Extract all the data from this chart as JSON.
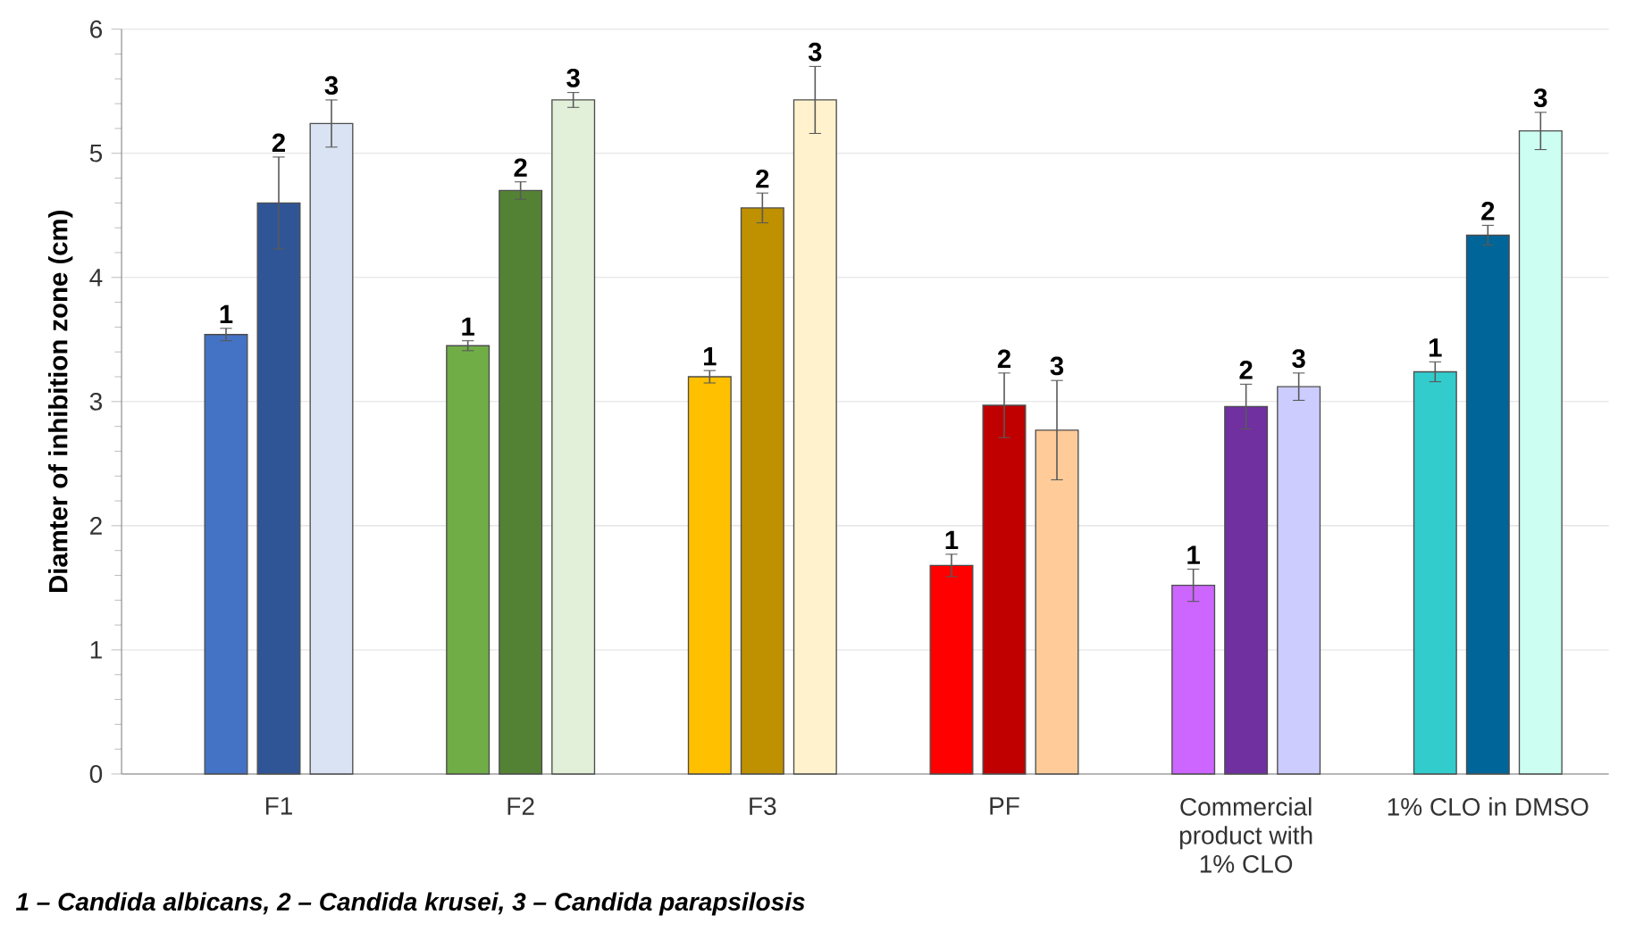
{
  "chart_data": {
    "type": "bar",
    "ylabel": "Diamter of inhibition zone (cm)",
    "categories": [
      "F1",
      "F2",
      "F3",
      "PF",
      "Commercial product with 1% CLO",
      "1% CLO in DMSO"
    ],
    "series": [
      {
        "colors": [
          "#4472c4",
          "#70ad47",
          "#ffc000",
          "#ff0000",
          "#cc66ff",
          "#33cccc"
        ],
        "values": [
          3.54,
          3.45,
          3.2,
          1.68,
          1.52,
          3.24
        ],
        "errors": [
          0.05,
          0.04,
          0.05,
          0.09,
          0.13,
          0.08
        ],
        "name": "1"
      },
      {
        "colors": [
          "#2f5597",
          "#548235",
          "#bf9000",
          "#c00000",
          "#7030a0",
          "#006699"
        ],
        "values": [
          4.6,
          4.7,
          4.56,
          2.97,
          2.96,
          4.34
        ],
        "errors": [
          0.37,
          0.07,
          0.12,
          0.26,
          0.18,
          0.08
        ],
        "name": "2"
      },
      {
        "colors": [
          "#dae3f3",
          "#e2f0d9",
          "#fff2cc",
          "#ffcc99",
          "#ccccff",
          "#ccfff2"
        ],
        "values": [
          5.24,
          5.43,
          5.43,
          2.77,
          3.12,
          5.18
        ],
        "errors": [
          0.19,
          0.06,
          0.27,
          0.4,
          0.11,
          0.15
        ],
        "name": "3"
      }
    ],
    "ylim": [
      0,
      6
    ],
    "yticks": [
      0,
      1,
      2,
      3,
      4,
      5,
      6
    ],
    "grid": "y",
    "annotations": [
      "1 – Candida albicans,  2 – Candida krusei,  3 – Candida parapsilosis"
    ]
  }
}
